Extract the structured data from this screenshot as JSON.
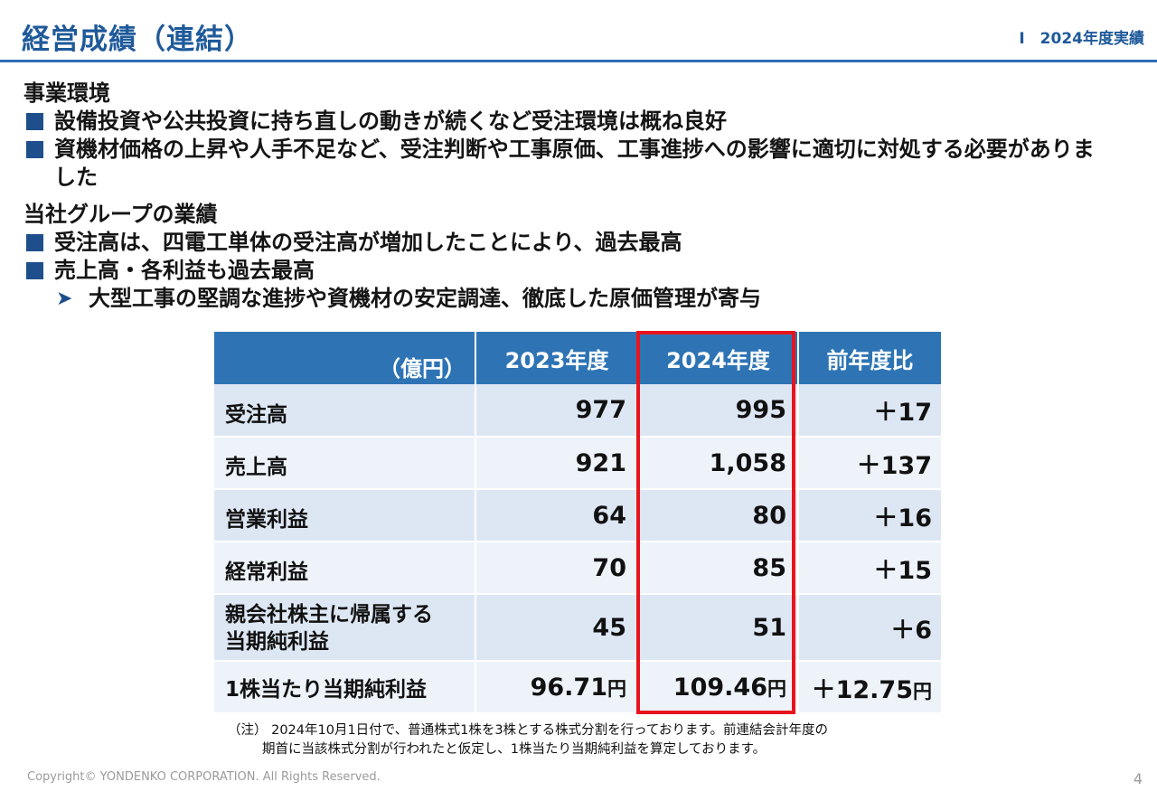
{
  "header": {
    "title": "経営成績（連結）",
    "section": "Ⅰ　2024年度実績"
  },
  "environment": {
    "heading": "事業環境",
    "bullets": [
      "設備投資や公共投資に持ち直しの動きが続くなど受注環境は概ね良好",
      "資機材価格の上昇や人手不足など、受注判断や工事原価、工事進捗への影響に適切に対処する必要がありました"
    ]
  },
  "group": {
    "heading": "当社グループの業績",
    "bullets": [
      "受注高は、四電工単体の受注高が増加したことにより、過去最高",
      "売上高・各利益も過去最高"
    ],
    "arrow_glyph": "➤",
    "sub_bullet": "大型工事の堅調な進捗や資機材の安定調達、徹底した原価管理が寄与"
  },
  "table": {
    "unit_label": "（億円）",
    "columns": [
      "2023年度",
      "2024年度",
      "前年度比"
    ],
    "rows": [
      {
        "label": "受注高",
        "fy2023": "977",
        "fy2024": "995",
        "change": "＋17"
      },
      {
        "label": "売上高",
        "fy2023": "921",
        "fy2024": "1,058",
        "change": "＋137"
      },
      {
        "label": "営業利益",
        "fy2023": "64",
        "fy2024": "80",
        "change": "＋16"
      },
      {
        "label": "経常利益",
        "fy2023": "70",
        "fy2024": "85",
        "change": "＋15"
      },
      {
        "label_line1": "親会社株主に帰属する",
        "label_line2": "当期純利益",
        "fy2023": "45",
        "fy2024": "51",
        "change": "＋6"
      },
      {
        "label": "1株当たり当期純利益",
        "fy2023": "96.71",
        "fy2024": "109.46",
        "change": "＋12.75",
        "unit": "円"
      }
    ],
    "highlight_color": "#e8141d"
  },
  "note": {
    "line1": "（注）  2024年10月1日付で、普通株式1株を3株とする株式分割を行っております。前連結会計年度の",
    "line2": "期首に当該株式分割が行われたと仮定し、1株当たり当期純利益を算定しております。"
  },
  "footer": {
    "copyright": "Copyright© YONDENKO CORPORATION. All Rights Reserved.",
    "page_number": "4"
  },
  "colors": {
    "title_blue": "#1f5a9a",
    "header_blue": "#2e74b5",
    "row_light": "#dde7f4",
    "row_lighter": "#eef3fa",
    "bullet_square": "#1f4e8c"
  }
}
